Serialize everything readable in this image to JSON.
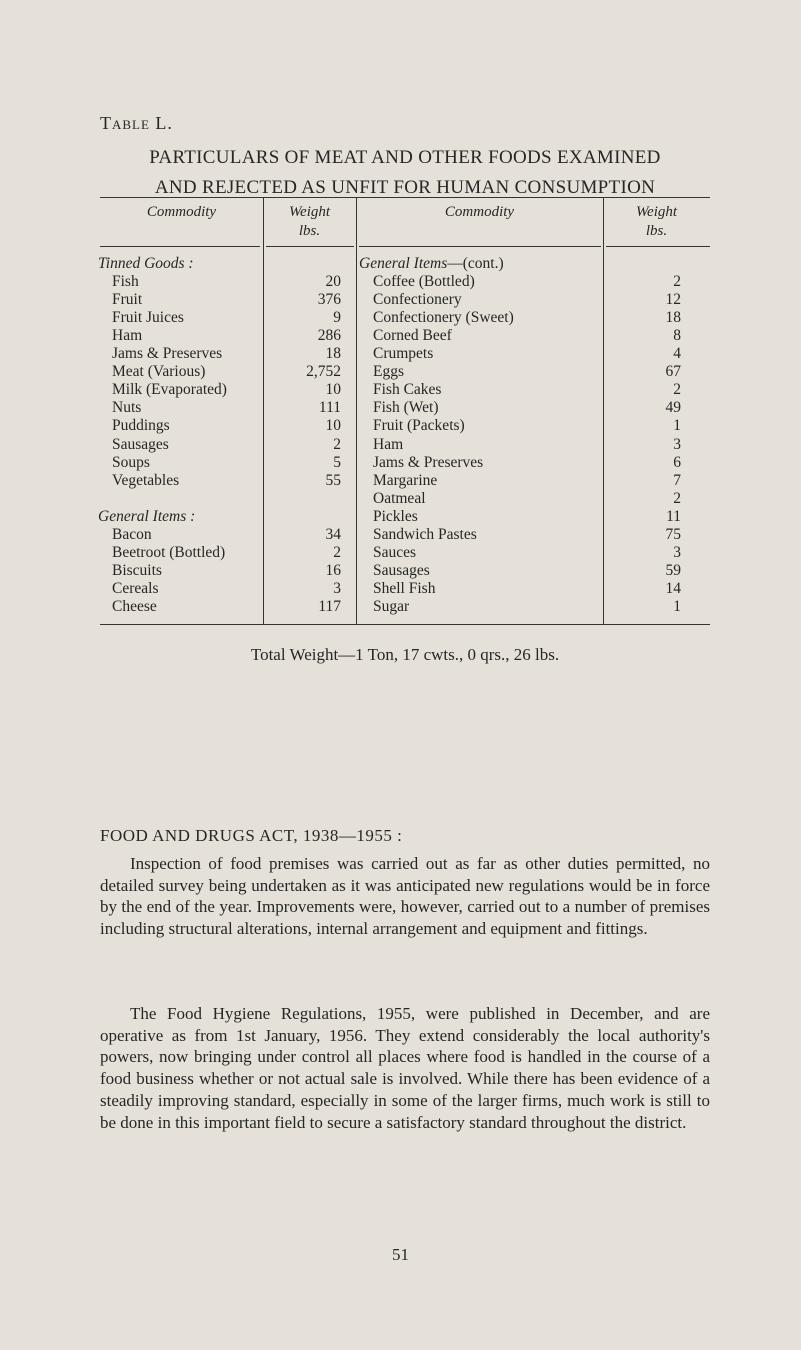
{
  "table_label": "Table L.",
  "heading": [
    "PARTICULARS OF MEAT AND OTHER FOODS EXAMINED",
    "AND REJECTED AS UNFIT FOR HUMAN CONSUMPTION"
  ],
  "columns": {
    "commodity": "Commodity",
    "weight": "Weight",
    "unit": "lbs."
  },
  "left_rows": [
    {
      "label": "Tinned Goods :",
      "section": true
    },
    {
      "label": "Fish",
      "value": "20"
    },
    {
      "label": "Fruit",
      "value": "376"
    },
    {
      "label": "Fruit Juices",
      "value": "9"
    },
    {
      "label": "Ham",
      "value": "286"
    },
    {
      "label": "Jams & Preserves",
      "value": "18"
    },
    {
      "label": "Meat (Various)",
      "value": "2,752"
    },
    {
      "label": "Milk (Evaporated)",
      "value": "10"
    },
    {
      "label": "Nuts",
      "value": "111"
    },
    {
      "label": "Puddings",
      "value": "10"
    },
    {
      "label": "Sausages",
      "value": "2"
    },
    {
      "label": "Soups",
      "value": "5"
    },
    {
      "label": "Vegetables",
      "value": "55"
    },
    {
      "label": ""
    },
    {
      "label": "General Items :",
      "section": true
    },
    {
      "label": "Bacon",
      "value": "34"
    },
    {
      "label": "Beetroot (Bottled)",
      "value": "2"
    },
    {
      "label": "Biscuits",
      "value": "16"
    },
    {
      "label": "Cereals",
      "value": "3"
    },
    {
      "label": "Cheese",
      "value": "117"
    }
  ],
  "right_rows": [
    {
      "label": "General Items",
      "suffix": "—(cont.)",
      "section": true
    },
    {
      "label": "Coffee (Bottled)",
      "value": "2"
    },
    {
      "label": "Confectionery",
      "value": "12"
    },
    {
      "label": "Confectionery (Sweet)",
      "value": "18"
    },
    {
      "label": "Corned Beef",
      "value": "8"
    },
    {
      "label": "Crumpets",
      "value": "4"
    },
    {
      "label": "Eggs",
      "value": "67"
    },
    {
      "label": "Fish Cakes",
      "value": "2"
    },
    {
      "label": "Fish (Wet)",
      "value": "49"
    },
    {
      "label": "Fruit (Packets)",
      "value": "1"
    },
    {
      "label": "Ham",
      "value": "3"
    },
    {
      "label": "Jams & Preserves",
      "value": "6"
    },
    {
      "label": "Margarine",
      "value": "7"
    },
    {
      "label": "Oatmeal",
      "value": "2"
    },
    {
      "label": "Pickles",
      "value": "11"
    },
    {
      "label": "Sandwich Pastes",
      "value": "75"
    },
    {
      "label": "Sauces",
      "value": "3"
    },
    {
      "label": "Sausages",
      "value": "59"
    },
    {
      "label": "Shell Fish",
      "value": "14"
    },
    {
      "label": "Sugar",
      "value": "1"
    }
  ],
  "total": "Total Weight—1 Ton, 17 cwts., 0 qrs., 26 lbs.",
  "section_heading": "FOOD AND DRUGS ACT, 1938—1955 :",
  "paragraphs": [
    "Inspection of food premises was carried out as far as other duties permitted, no detailed survey being undertaken as it was anticipated new regulations would be in force by the end of the year. Improvements were, however, carried out to a number of premises including structural alterations, internal arrangement and equipment and fittings.",
    "The Food Hygiene Regulations, 1955, were published in December, and are operative as from 1st January, 1956. They extend considerably the local authority's powers, now bringing under control all places where food is handled in the course of a food business whether or not actual sale is involved. While there has been evidence of a steadily improving standard, especially in some of the larger firms, much work is still to be done in this important field to secure a satisfactory standard throughout the district."
  ],
  "page_number": "51"
}
